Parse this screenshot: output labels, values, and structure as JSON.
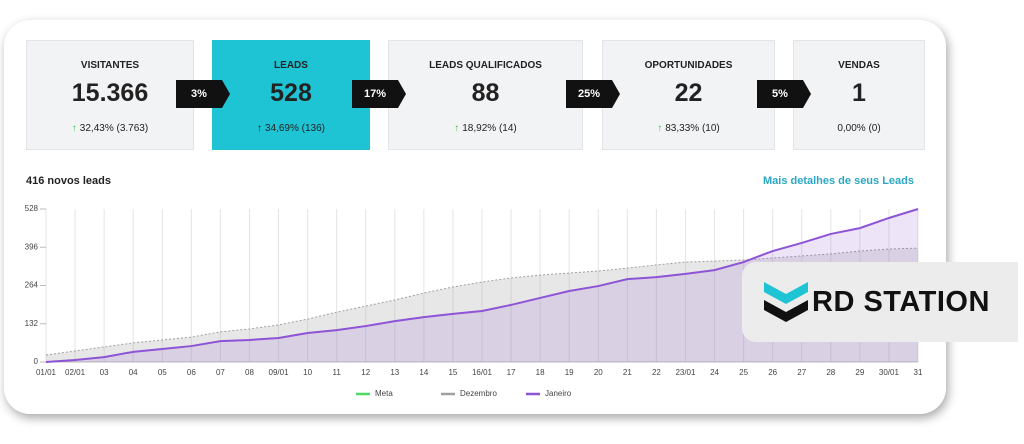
{
  "funnel": [
    {
      "title": "VISITANTES",
      "value": "15.366",
      "change": "32,43% (3.763)"
    },
    {
      "title": "LEADS",
      "value": "528",
      "change": "34,69% (136)"
    },
    {
      "title": "LEADS QUALIFICADOS",
      "value": "88",
      "change": "18,92% (14)"
    },
    {
      "title": "OPORTUNIDADES",
      "value": "22",
      "change": "83,33% (10)"
    },
    {
      "title": "VENDAS",
      "value": "1",
      "change": "0,00% (0)"
    }
  ],
  "conversions": [
    "3%",
    "17%",
    "25%",
    "5%"
  ],
  "summary": "416 novos leads",
  "link": "Mais detalhes de seus Leads",
  "brand": "RD STATION",
  "chart_data": {
    "type": "area",
    "categories": [
      "01/01",
      "02/01",
      "03",
      "04",
      "05",
      "06",
      "07",
      "08",
      "09/01",
      "10",
      "11",
      "12",
      "13",
      "14",
      "15",
      "16/01",
      "17",
      "18",
      "19",
      "20",
      "21",
      "22",
      "23/01",
      "24",
      "25",
      "26",
      "27",
      "28",
      "29",
      "30/01",
      "31"
    ],
    "ylim": [
      0,
      528
    ],
    "yticks": [
      0,
      132,
      264,
      396,
      528
    ],
    "grid": true,
    "series": [
      {
        "name": "Meta",
        "color": "#4cd964",
        "values": [
          null,
          null,
          null,
          null,
          null,
          null,
          null,
          null,
          null,
          null,
          null,
          null,
          null,
          null,
          null,
          null,
          null,
          null,
          null,
          null,
          null,
          null,
          null,
          null,
          null,
          null,
          null,
          null,
          null,
          null,
          null
        ]
      },
      {
        "name": "Dezembro",
        "color": "#a0a0a0",
        "values": [
          24,
          38,
          52,
          66,
          76,
          86,
          104,
          114,
          128,
          148,
          172,
          193,
          214,
          238,
          259,
          276,
          290,
          300,
          307,
          314,
          324,
          335,
          345,
          348,
          352,
          359,
          366,
          373,
          383,
          390,
          393
        ]
      },
      {
        "name": "Janeiro",
        "color": "#8e54d6",
        "values": [
          0,
          7,
          17,
          35,
          45,
          55,
          72,
          76,
          83,
          100,
          110,
          124,
          141,
          155,
          166,
          176,
          197,
          221,
          245,
          262,
          286,
          293,
          304,
          317,
          345,
          383,
          411,
          442,
          462,
          497,
          528
        ]
      }
    ]
  }
}
